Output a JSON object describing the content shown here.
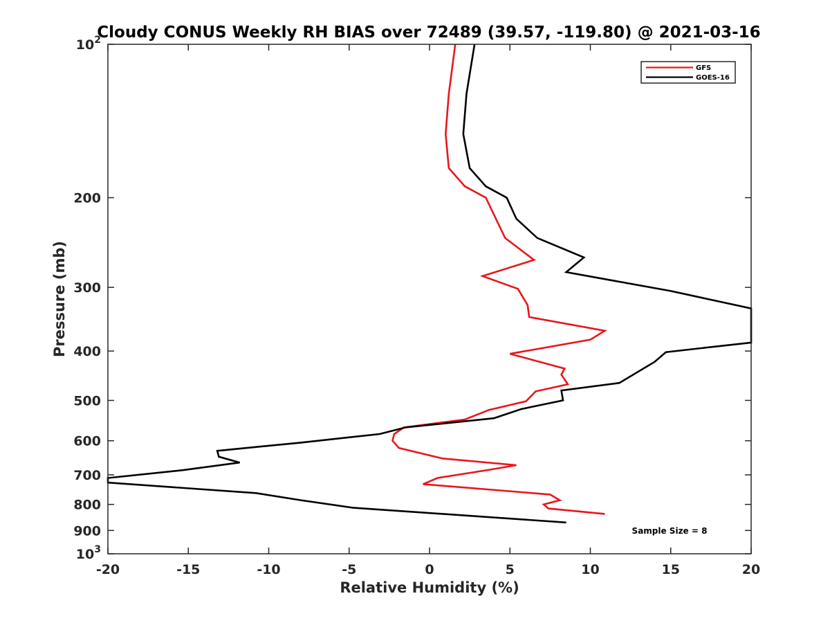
{
  "chart_data": {
    "type": "line",
    "title": "Cloudy CONUS Weekly RH BIAS over 72489 (39.57, -119.80) @ 2021-03-16",
    "xlabel": "Relative Humidity (%)",
    "ylabel": "Pressure (mb)",
    "xlim": [
      -20,
      20
    ],
    "ylim": [
      100,
      1000
    ],
    "y_scale": "log",
    "y_reversed": true,
    "grid": false,
    "legend_position": "top-right",
    "x_ticks": [
      "-20",
      "-15",
      "-10",
      "-5",
      "0",
      "5",
      "10",
      "15",
      "20"
    ],
    "y_ticks": [
      {
        "value": 100,
        "base": "10",
        "exp": "2"
      },
      {
        "value": 200,
        "label": "200"
      },
      {
        "value": 300,
        "label": "300"
      },
      {
        "value": 400,
        "label": "400"
      },
      {
        "value": 500,
        "label": "500"
      },
      {
        "value": 600,
        "label": "600"
      },
      {
        "value": 700,
        "label": "700"
      },
      {
        "value": 800,
        "label": "800"
      },
      {
        "value": 900,
        "label": "900"
      },
      {
        "value": 1000,
        "base": "10",
        "exp": "3"
      }
    ],
    "series": [
      {
        "name": "GFS",
        "color": "#e8161b",
        "points": [
          [
            1.6,
            100
          ],
          [
            1.2,
            125
          ],
          [
            1.0,
            150
          ],
          [
            1.2,
            175
          ],
          [
            2.2,
            190
          ],
          [
            3.5,
            200
          ],
          [
            4.7,
            240
          ],
          [
            6.5,
            265
          ],
          [
            3.3,
            285
          ],
          [
            5.5,
            302
          ],
          [
            6.1,
            325
          ],
          [
            6.2,
            343
          ],
          [
            10.9,
            365
          ],
          [
            10.0,
            380
          ],
          [
            5.0,
            405
          ],
          [
            8.4,
            433
          ],
          [
            8.2,
            445
          ],
          [
            8.6,
            465
          ],
          [
            6.6,
            480
          ],
          [
            6.0,
            502
          ],
          [
            3.7,
            522
          ],
          [
            2.2,
            545
          ],
          [
            -1.6,
            565
          ],
          [
            -2.2,
            582
          ],
          [
            -2.3,
            600
          ],
          [
            -1.9,
            620
          ],
          [
            0.8,
            650
          ],
          [
            5.4,
            670
          ],
          [
            3.6,
            685
          ],
          [
            0.5,
            710
          ],
          [
            -0.4,
            730
          ],
          [
            7.5,
            765
          ],
          [
            8.1,
            785
          ],
          [
            7.1,
            800
          ],
          [
            7.4,
            815
          ],
          [
            10.9,
            835
          ]
        ]
      },
      {
        "name": "GOES-16",
        "color": "#000000",
        "points": [
          [
            2.8,
            100
          ],
          [
            2.3,
            125
          ],
          [
            2.1,
            150
          ],
          [
            2.5,
            175
          ],
          [
            3.5,
            190
          ],
          [
            4.8,
            200
          ],
          [
            5.4,
            220
          ],
          [
            6.7,
            240
          ],
          [
            9.6,
            262
          ],
          [
            8.5,
            280
          ],
          [
            15.0,
            305
          ],
          [
            20.0,
            330
          ],
          [
            20.0,
            385
          ],
          [
            14.7,
            402
          ],
          [
            14.0,
            420
          ],
          [
            11.8,
            462
          ],
          [
            8.2,
            478
          ],
          [
            8.3,
            500
          ],
          [
            5.7,
            520
          ],
          [
            4.0,
            542
          ],
          [
            -1.5,
            565
          ],
          [
            -3.1,
            582
          ],
          [
            -8.0,
            605
          ],
          [
            -13.2,
            628
          ],
          [
            -13.1,
            645
          ],
          [
            -11.8,
            662
          ],
          [
            -15.3,
            685
          ],
          [
            -20.0,
            710
          ],
          [
            -20.0,
            725
          ],
          [
            -10.8,
            760
          ],
          [
            -8.0,
            785
          ],
          [
            -4.8,
            812
          ],
          [
            8.5,
            868
          ]
        ]
      }
    ],
    "annotations": [
      "Sample Size = 8"
    ]
  }
}
